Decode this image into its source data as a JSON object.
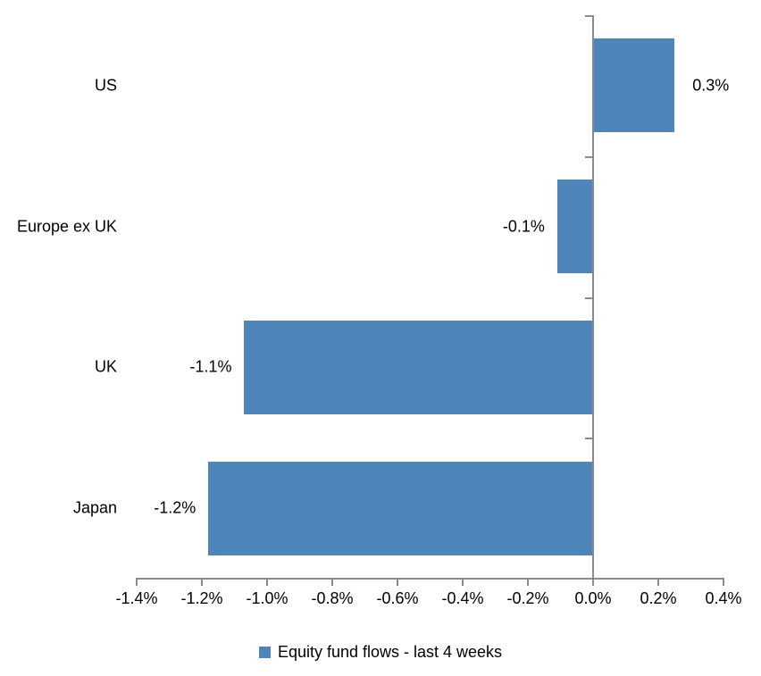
{
  "chart_data": {
    "type": "bar",
    "orientation": "horizontal",
    "title": "",
    "categories": [
      "US",
      "Europe ex UK",
      "UK",
      "Japan"
    ],
    "values": [
      0.25,
      -0.11,
      -1.07,
      -1.18
    ],
    "data_labels": [
      "0.3%",
      "-0.1%",
      "-1.1%",
      "-1.2%"
    ],
    "x_ticks": [
      "-1.4%",
      "-1.2%",
      "-1.0%",
      "-0.8%",
      "-0.6%",
      "-0.4%",
      "-0.2%",
      "0.0%",
      "0.2%",
      "0.4%"
    ],
    "x_tick_values": [
      -1.4,
      -1.2,
      -1.0,
      -0.8,
      -0.6,
      -0.4,
      -0.2,
      0.0,
      0.2,
      0.4
    ],
    "xlim": [
      -1.4,
      0.4
    ],
    "grid": false,
    "legend": {
      "label": "Equity fund flows - last 4 weeks",
      "position": "bottom"
    },
    "colors": {
      "bar": "#4E86BC",
      "axis": "#8A8A8A",
      "text": "#000000",
      "background": "#FFFFFF"
    }
  }
}
